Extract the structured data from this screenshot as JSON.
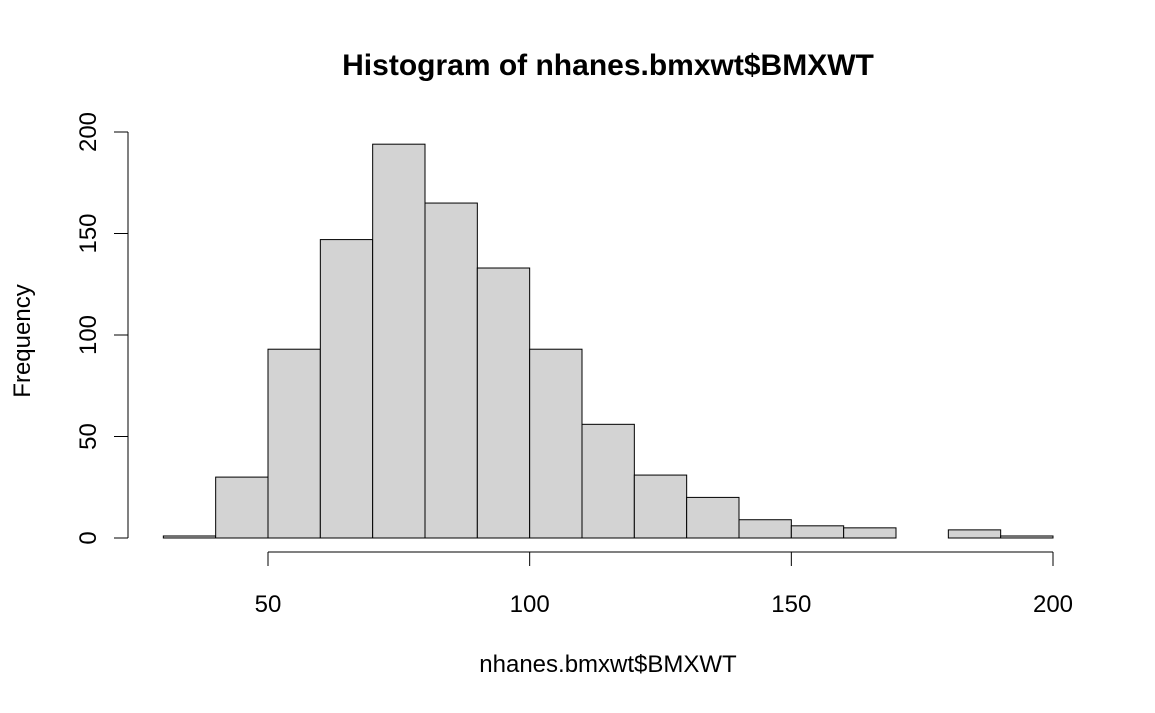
{
  "chart_data": {
    "type": "bar",
    "title": "Histogram of nhanes.bmxwt$BMXWT",
    "xlabel": "nhanes.bmxwt$BMXWT",
    "ylabel": "Frequency",
    "bins": [
      {
        "start": 30,
        "end": 40,
        "count": 1
      },
      {
        "start": 40,
        "end": 50,
        "count": 30
      },
      {
        "start": 50,
        "end": 60,
        "count": 93
      },
      {
        "start": 60,
        "end": 70,
        "count": 147
      },
      {
        "start": 70,
        "end": 80,
        "count": 194
      },
      {
        "start": 80,
        "end": 90,
        "count": 165
      },
      {
        "start": 90,
        "end": 100,
        "count": 133
      },
      {
        "start": 100,
        "end": 110,
        "count": 93
      },
      {
        "start": 110,
        "end": 120,
        "count": 56
      },
      {
        "start": 120,
        "end": 130,
        "count": 31
      },
      {
        "start": 130,
        "end": 140,
        "count": 20
      },
      {
        "start": 140,
        "end": 150,
        "count": 9
      },
      {
        "start": 150,
        "end": 160,
        "count": 6
      },
      {
        "start": 160,
        "end": 170,
        "count": 5
      },
      {
        "start": 170,
        "end": 180,
        "count": 0
      },
      {
        "start": 180,
        "end": 190,
        "count": 4
      },
      {
        "start": 190,
        "end": 200,
        "count": 1
      }
    ],
    "xlim": [
      30,
      200
    ],
    "ylim": [
      0,
      200
    ],
    "xticks": [
      50,
      100,
      150,
      200
    ],
    "yticks": [
      0,
      50,
      100,
      150,
      200
    ],
    "bar_color": "#d3d3d3",
    "bar_border_color": "#000000",
    "grid": false,
    "legend": false
  }
}
